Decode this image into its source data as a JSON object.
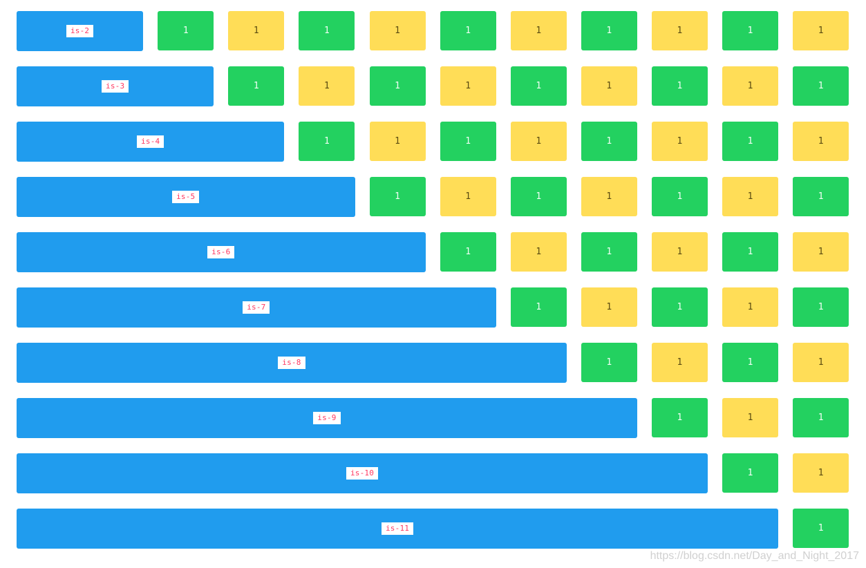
{
  "colors": {
    "blue": "#209cee",
    "green": "#23d160",
    "yellow": "#ffdd57",
    "tag_text": "#ff3860"
  },
  "cell_label": "1",
  "rows": [
    {
      "label": "is-2",
      "span": 2
    },
    {
      "label": "is-3",
      "span": 3
    },
    {
      "label": "is-4",
      "span": 4
    },
    {
      "label": "is-5",
      "span": 5
    },
    {
      "label": "is-6",
      "span": 6
    },
    {
      "label": "is-7",
      "span": 7
    },
    {
      "label": "is-8",
      "span": 8
    },
    {
      "label": "is-9",
      "span": 9
    },
    {
      "label": "is-10",
      "span": 10
    },
    {
      "label": "is-11",
      "span": 11
    }
  ],
  "watermark": "https://blog.csdn.net/Day_and_Night_2017"
}
